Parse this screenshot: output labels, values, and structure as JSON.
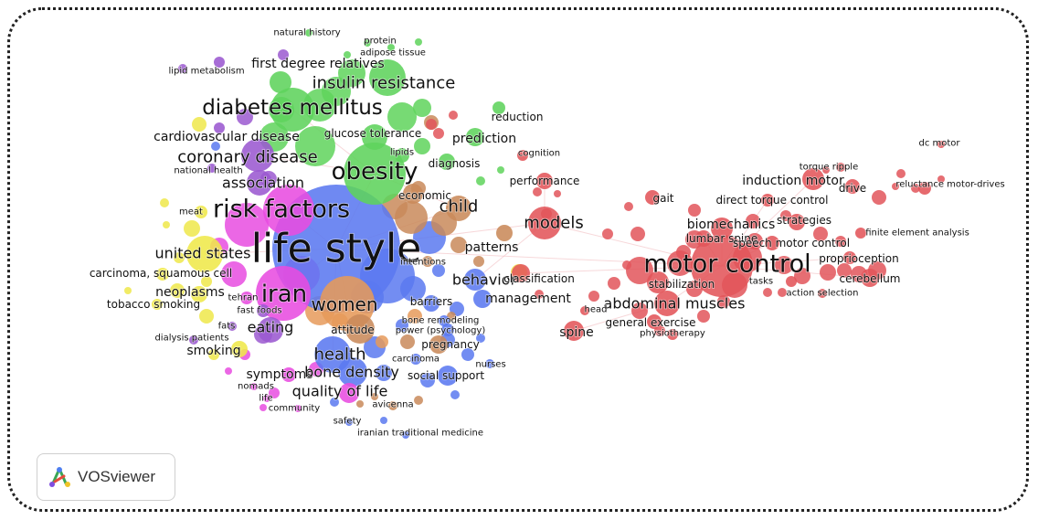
{
  "app": {
    "logo_text": "VOSviewer"
  },
  "colors": {
    "red": "#e2555a",
    "green": "#5fd35c",
    "blue": "#5b79f0",
    "purple": "#9b59d0",
    "magenta": "#e84ce0",
    "yellow": "#efe84a",
    "brown": "#c98a5a",
    "orange": "#e69a5a",
    "link": "#f0b8bc"
  },
  "labels": [
    {
      "text": "natural history",
      "cluster": "green",
      "size": 2
    },
    {
      "text": "protein",
      "cluster": "green",
      "size": 2
    },
    {
      "text": "adipose tissue",
      "cluster": "green",
      "size": 2
    },
    {
      "text": "lipid metabolism",
      "cluster": "purple",
      "size": 2
    },
    {
      "text": "first degree relatives",
      "cluster": "green",
      "size": 4
    },
    {
      "text": "insulin resistance",
      "cluster": "green",
      "size": 6
    },
    {
      "text": "diabetes mellitus",
      "cluster": "green",
      "size": 8
    },
    {
      "text": "reduction",
      "cluster": "green",
      "size": 3
    },
    {
      "text": "cardiovascular disease",
      "cluster": "purple",
      "size": 4
    },
    {
      "text": "glucose tolerance",
      "cluster": "green",
      "size": 3
    },
    {
      "text": "prediction",
      "cluster": "green",
      "size": 4
    },
    {
      "text": "lipids",
      "cluster": "green",
      "size": 2
    },
    {
      "text": "cognition",
      "cluster": "red",
      "size": 2
    },
    {
      "text": "dc motor",
      "cluster": "red",
      "size": 2
    },
    {
      "text": "coronary disease",
      "cluster": "purple",
      "size": 6
    },
    {
      "text": "national health",
      "cluster": "purple",
      "size": 2
    },
    {
      "text": "obesity",
      "cluster": "green",
      "size": 9
    },
    {
      "text": "diagnosis",
      "cluster": "green",
      "size": 3
    },
    {
      "text": "torque ripple",
      "cluster": "red",
      "size": 2
    },
    {
      "text": "performance",
      "cluster": "red",
      "size": 3
    },
    {
      "text": "induction motor",
      "cluster": "red",
      "size": 4
    },
    {
      "text": "reluctance motor-drives",
      "cluster": "red",
      "size": 2
    },
    {
      "text": "drive",
      "cluster": "red",
      "size": 3
    },
    {
      "text": "association",
      "cluster": "purple",
      "size": 5
    },
    {
      "text": "economic",
      "cluster": "brown",
      "size": 3
    },
    {
      "text": "gait",
      "cluster": "red",
      "size": 3
    },
    {
      "text": "direct torque control",
      "cluster": "red",
      "size": 3
    },
    {
      "text": "risk factors",
      "cluster": "magenta",
      "size": 10
    },
    {
      "text": "meat",
      "cluster": "yellow",
      "size": 2
    },
    {
      "text": "child",
      "cluster": "brown",
      "size": 6
    },
    {
      "text": "models",
      "cluster": "red",
      "size": 6
    },
    {
      "text": "biomechanics",
      "cluster": "red",
      "size": 4
    },
    {
      "text": "strategies",
      "cluster": "red",
      "size": 3
    },
    {
      "text": "lumbar spine",
      "cluster": "red",
      "size": 3
    },
    {
      "text": "speech motor control",
      "cluster": "red",
      "size": 3
    },
    {
      "text": "finite element analysis",
      "cluster": "red",
      "size": 2
    },
    {
      "text": "life style",
      "cluster": "blue",
      "size": 14
    },
    {
      "text": "patterns",
      "cluster": "brown",
      "size": 4
    },
    {
      "text": "united states",
      "cluster": "yellow",
      "size": 5
    },
    {
      "text": "intentions",
      "cluster": "brown",
      "size": 2
    },
    {
      "text": "proprioception",
      "cluster": "red",
      "size": 3
    },
    {
      "text": "motor control",
      "cluster": "red",
      "size": 10
    },
    {
      "text": "cerebellum",
      "cluster": "red",
      "size": 3
    },
    {
      "text": "carcinoma, squamous cell",
      "cluster": "yellow",
      "size": 3
    },
    {
      "text": "behavior",
      "cluster": "blue",
      "size": 5
    },
    {
      "text": "classification",
      "cluster": "red",
      "size": 3
    },
    {
      "text": "tasks",
      "cluster": "red",
      "size": 2
    },
    {
      "text": "stabilization",
      "cluster": "red",
      "size": 3
    },
    {
      "text": "action selection",
      "cluster": "red",
      "size": 2
    },
    {
      "text": "neoplasms",
      "cluster": "yellow",
      "size": 4
    },
    {
      "text": "iran",
      "cluster": "magenta",
      "size": 9
    },
    {
      "text": "barriers",
      "cluster": "blue",
      "size": 3
    },
    {
      "text": "management",
      "cluster": "blue",
      "size": 4
    },
    {
      "text": "tobacco smoking",
      "cluster": "yellow",
      "size": 3
    },
    {
      "text": "tehran",
      "cluster": "magenta",
      "size": 2
    },
    {
      "text": "women",
      "cluster": "orange",
      "size": 7
    },
    {
      "text": "abdominal muscles",
      "cluster": "red",
      "size": 5
    },
    {
      "text": "fast foods",
      "cluster": "purple",
      "size": 2
    },
    {
      "text": "head",
      "cluster": "red",
      "size": 2
    },
    {
      "text": "bone remodeling",
      "cluster": "blue",
      "size": 2
    },
    {
      "text": "general exercise",
      "cluster": "red",
      "size": 3
    },
    {
      "text": "eating",
      "cluster": "purple",
      "size": 5
    },
    {
      "text": "fats",
      "cluster": "purple",
      "size": 2
    },
    {
      "text": "attitude",
      "cluster": "brown",
      "size": 3
    },
    {
      "text": "power (psychology)",
      "cluster": "blue",
      "size": 2
    },
    {
      "text": "spine",
      "cluster": "red",
      "size": 4
    },
    {
      "text": "physiotherapy",
      "cluster": "red",
      "size": 2
    },
    {
      "text": "dialysis patients",
      "cluster": "purple",
      "size": 2
    },
    {
      "text": "pregnancy",
      "cluster": "brown",
      "size": 3
    },
    {
      "text": "smoking",
      "cluster": "yellow",
      "size": 4
    },
    {
      "text": "health",
      "cluster": "blue",
      "size": 6
    },
    {
      "text": "carcinoma",
      "cluster": "blue",
      "size": 2
    },
    {
      "text": "nurses",
      "cluster": "blue",
      "size": 2
    },
    {
      "text": "symptoms",
      "cluster": "magenta",
      "size": 4
    },
    {
      "text": "bone density",
      "cluster": "blue",
      "size": 5
    },
    {
      "text": "social support",
      "cluster": "blue",
      "size": 3
    },
    {
      "text": "nomads",
      "cluster": "magenta",
      "size": 2
    },
    {
      "text": "quality of life",
      "cluster": "magenta",
      "size": 5
    },
    {
      "text": "life",
      "cluster": "magenta",
      "size": 2
    },
    {
      "text": "community",
      "cluster": "magenta",
      "size": 2
    },
    {
      "text": "avicenna",
      "cluster": "brown",
      "size": 2
    },
    {
      "text": "safety",
      "cluster": "blue",
      "size": 2
    },
    {
      "text": "iranian traditional medicine",
      "cluster": "blue",
      "size": 2
    }
  ]
}
